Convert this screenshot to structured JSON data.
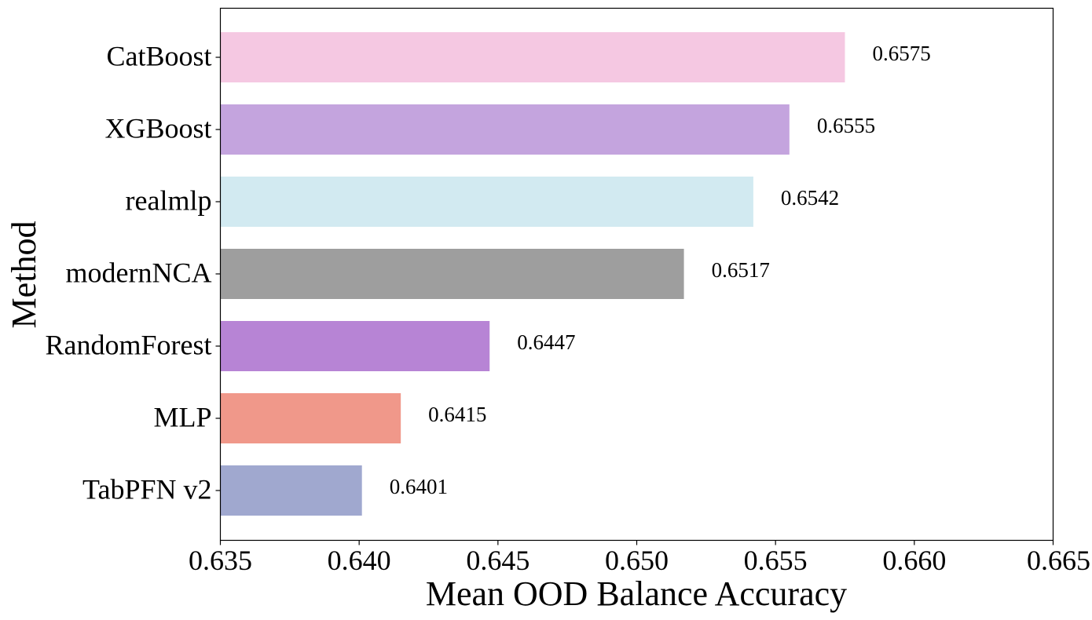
{
  "chart_data": {
    "type": "bar",
    "orientation": "horizontal",
    "categories": [
      "CatBoost",
      "XGBoost",
      "realmlp",
      "modernNCA",
      "RandomForest",
      "MLP",
      "TabPFN v2"
    ],
    "values": [
      0.6575,
      0.6555,
      0.6542,
      0.6517,
      0.6447,
      0.6415,
      0.6401
    ],
    "value_labels": [
      "0.6575",
      "0.6555",
      "0.6542",
      "0.6517",
      "0.6447",
      "0.6415",
      "0.6401"
    ],
    "colors": [
      "#f5c8e2",
      "#c4a4de",
      "#d2eaf1",
      "#9e9e9e",
      "#b784d5",
      "#f0988a",
      "#a0a8cf"
    ],
    "xlabel": "Mean OOD Balance Accuracy",
    "ylabel": "Method",
    "xlim": [
      0.635,
      0.665
    ],
    "xticks": [
      0.635,
      0.64,
      0.645,
      0.65,
      0.655,
      0.66,
      0.665
    ],
    "xtick_labels": [
      "0.635",
      "0.640",
      "0.645",
      "0.650",
      "0.655",
      "0.660",
      "0.665"
    ],
    "grid": false
  }
}
